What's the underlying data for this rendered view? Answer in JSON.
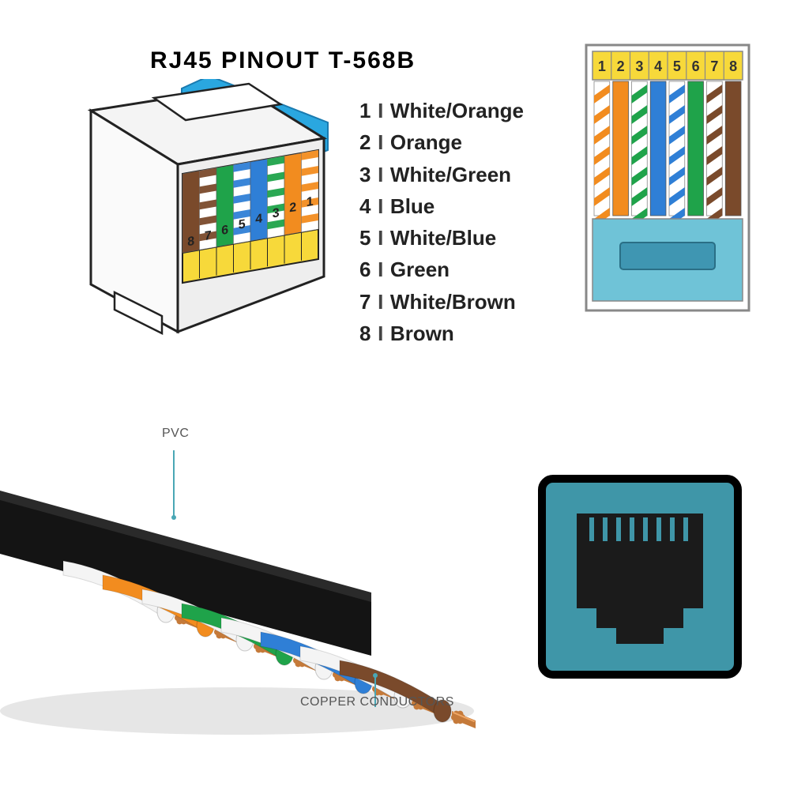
{
  "title": "RJ45 PINOUT  T-568B",
  "title_fontsize": 30,
  "pins": [
    {
      "n": "1",
      "label": "White/Orange",
      "stripe": true,
      "color": "#f28c1f",
      "bg": "#ffffff"
    },
    {
      "n": "2",
      "label": "Orange",
      "stripe": false,
      "color": "#f28c1f",
      "bg": "#f28c1f"
    },
    {
      "n": "3",
      "label": "White/Green",
      "stripe": true,
      "color": "#1fa34a",
      "bg": "#ffffff"
    },
    {
      "n": "4",
      "label": "Blue",
      "stripe": false,
      "color": "#2f7fd6",
      "bg": "#2f7fd6"
    },
    {
      "n": "5",
      "label": "White/Blue",
      "stripe": true,
      "color": "#2f7fd6",
      "bg": "#ffffff"
    },
    {
      "n": "6",
      "label": "Green",
      "stripe": false,
      "color": "#1fa34a",
      "bg": "#1fa34a"
    },
    {
      "n": "7",
      "label": "White/Brown",
      "stripe": true,
      "color": "#7a4a2b",
      "bg": "#ffffff"
    },
    {
      "n": "8",
      "label": "Brown",
      "stripe": false,
      "color": "#7a4a2b",
      "bg": "#7a4a2b"
    }
  ],
  "front_connector": {
    "body_fill": "#ffffff",
    "body_stroke": "#888888",
    "pin_band_fill": "#f7d93a",
    "pin_number_color": "#333333",
    "lower_fill": "#6fc3d7",
    "slot_fill": "#3f96b2"
  },
  "iso_connector": {
    "body_fill": "#f4f4f4",
    "body_stroke": "#222222",
    "boot_fill": "#2aa7e0",
    "pin_band_fill": "#f7d93a",
    "pin_number_color": "#222222"
  },
  "cable": {
    "jacket_color": "#141414",
    "shadow_color": "#d6d6d6",
    "copper_color": "#c57a3a",
    "copper_highlight": "#f0a766",
    "label_pvc": "PVC",
    "label_copper": "COPPER CONDUCTORS",
    "label_color": "#666666",
    "pointer_color": "#4aa7b5",
    "wire_order_solid": [
      "#f28c1f",
      "#1fa34a",
      "#2f7fd6",
      "#7a4a2b"
    ],
    "wire_white": "#f4f4f4"
  },
  "jack": {
    "outer_stroke": "#000000",
    "outer_fill": "#3f96a8",
    "inner_fill": "#1b1b1b",
    "pin_color": "#3f96a8"
  }
}
